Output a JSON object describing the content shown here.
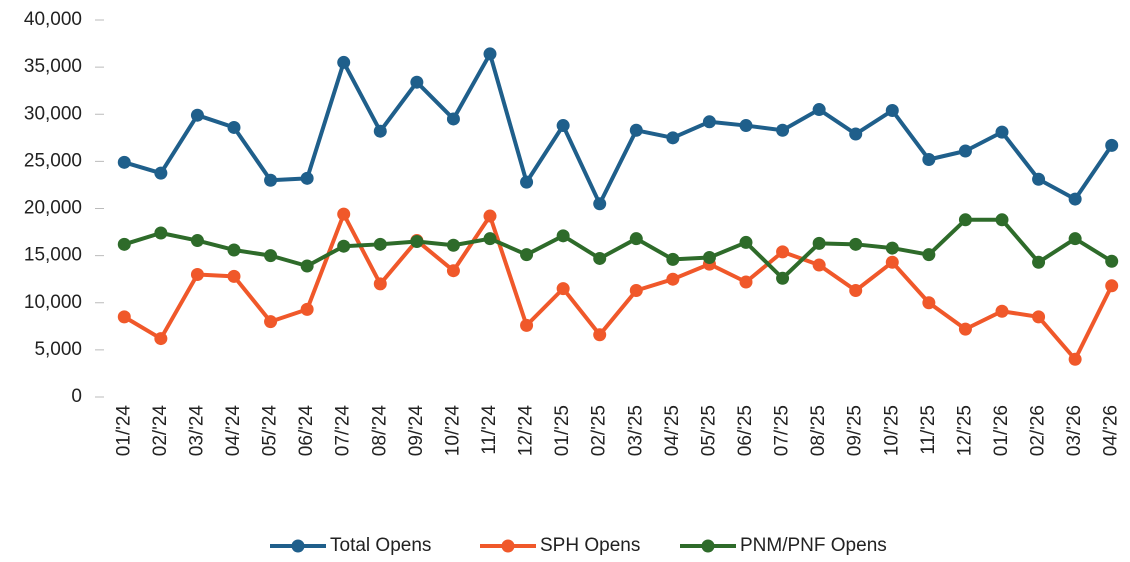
{
  "chart_data": {
    "type": "line",
    "categories": [
      "01/'24",
      "02/'24",
      "03/'24",
      "04/'24",
      "05/'24",
      "06/'24",
      "07/'24",
      "08/'24",
      "09/'24",
      "10/'24",
      "11/'24",
      "12/'24",
      "01/'25",
      "02/'25",
      "03/'25",
      "04/'25",
      "05/'25",
      "06/'25",
      "07/'25",
      "08/'25",
      "09/'25",
      "10/'25",
      "11/'25",
      "12/'25",
      "01/'26",
      "02/'26",
      "03/'26",
      "04/'26"
    ],
    "series": [
      {
        "name": "Total Opens",
        "color": "#1f5f8b",
        "values": [
          24900,
          23750,
          29900,
          28600,
          23000,
          23200,
          35500,
          28200,
          33400,
          29500,
          36400,
          22800,
          28800,
          20500,
          28300,
          27500,
          29200,
          28800,
          28300,
          30500,
          27900,
          30400,
          25200,
          26100,
          28100,
          23100,
          21000,
          26700
        ]
      },
      {
        "name": "SPH Opens",
        "color": "#f0582a",
        "values": [
          8500,
          6200,
          13000,
          12800,
          8000,
          9300,
          19400,
          12000,
          16600,
          13400,
          19200,
          7600,
          11500,
          6600,
          11300,
          12500,
          14100,
          12200,
          15400,
          14000,
          11300,
          14300,
          10000,
          7200,
          9100,
          8500,
          4000,
          11800
        ]
      },
      {
        "name": "PNM/PNF Opens",
        "color": "#2e6b2a",
        "values": [
          16200,
          17400,
          16600,
          15600,
          15000,
          13900,
          16000,
          16200,
          16500,
          16100,
          16800,
          15100,
          17100,
          14700,
          16800,
          14600,
          14800,
          16400,
          12600,
          16300,
          16200,
          15800,
          15100,
          18800,
          18800,
          14300,
          16800,
          14400
        ]
      }
    ],
    "ylim": [
      0,
      40000
    ],
    "yticks": [
      0,
      {
        "value": 5000,
        "label": "5,000"
      },
      {
        "value": 10000,
        "label": "10,000"
      },
      {
        "value": 15000,
        "label": "15,000"
      },
      {
        "value": 20000,
        "label": "20,000"
      },
      {
        "value": 25000,
        "label": "25,000"
      },
      {
        "value": 30000,
        "label": "30,000"
      },
      {
        "value": 35000,
        "label": "35,000"
      },
      {
        "value": 40000,
        "label": "40,000"
      }
    ],
    "grid": false,
    "legend": "bottom"
  }
}
